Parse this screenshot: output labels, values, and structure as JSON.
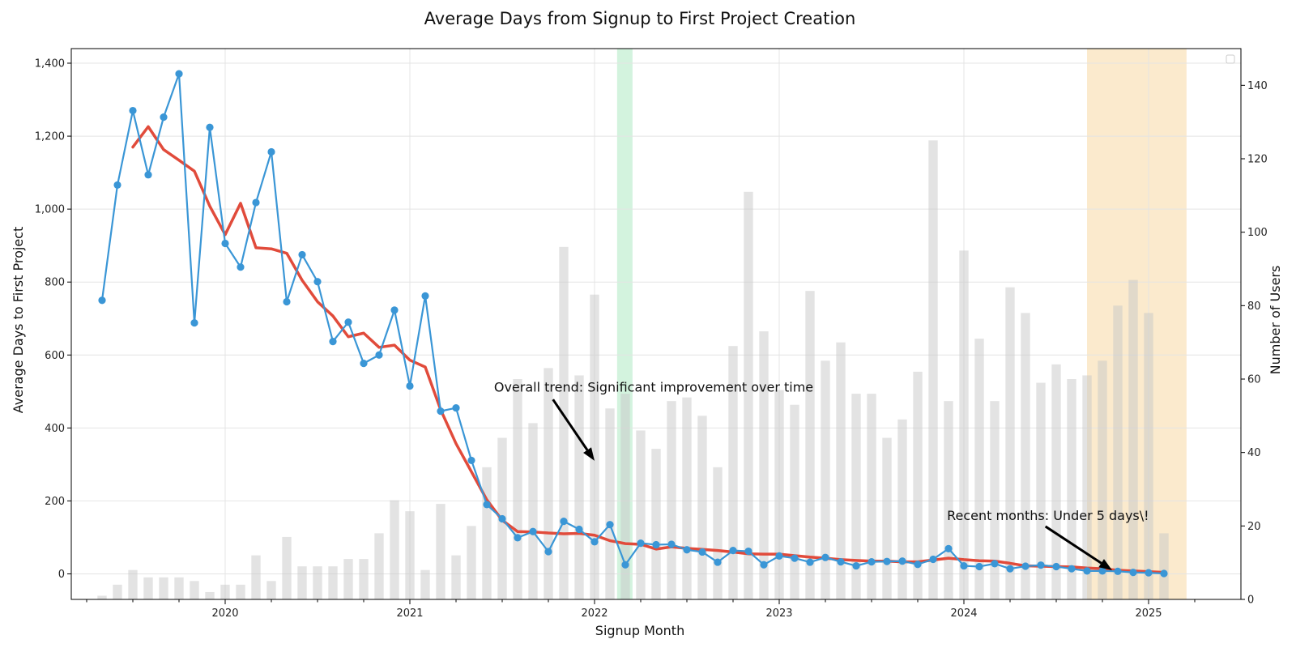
{
  "chart_data": {
    "type": "line",
    "title": "Average Days from Signup to First Project Creation",
    "xlabel": "Signup Month",
    "ylabel": "Average Days to First Project",
    "y2label": "Number of Users",
    "ylim": [
      -70,
      1440
    ],
    "y2lim": [
      0,
      150
    ],
    "xlim": [
      "2019-03",
      "2025-07"
    ],
    "y_ticks": [
      0,
      200,
      400,
      600,
      800,
      1000,
      1200,
      1400
    ],
    "y_tick_labels": [
      "0",
      "200",
      "400",
      "600",
      "800",
      "1,000",
      "1,200",
      "1,400"
    ],
    "y2_ticks": [
      0,
      20,
      40,
      60,
      80,
      100,
      120,
      140
    ],
    "y2_tick_labels": [
      "0",
      "20",
      "40",
      "60",
      "80",
      "100",
      "120",
      "140"
    ],
    "x_ticks": [
      "2020-01",
      "2021-01",
      "2022-01",
      "2023-01",
      "2024-01",
      "2025-01"
    ],
    "x_tick_labels": [
      "2020",
      "2021",
      "2022",
      "2023",
      "2024",
      "2025"
    ],
    "grid": true,
    "months": [
      "2019-05",
      "2019-06",
      "2019-07",
      "2019-08",
      "2019-09",
      "2019-10",
      "2019-11",
      "2019-12",
      "2020-01",
      "2020-02",
      "2020-03",
      "2020-04",
      "2020-05",
      "2020-06",
      "2020-07",
      "2020-08",
      "2020-09",
      "2020-10",
      "2020-11",
      "2020-12",
      "2021-01",
      "2021-02",
      "2021-03",
      "2021-04",
      "2021-05",
      "2021-06",
      "2021-07",
      "2021-08",
      "2021-09",
      "2021-10",
      "2021-11",
      "2021-12",
      "2022-01",
      "2022-02",
      "2022-03",
      "2022-04",
      "2022-05",
      "2022-06",
      "2022-07",
      "2022-08",
      "2022-09",
      "2022-10",
      "2022-11",
      "2022-12",
      "2023-01",
      "2023-02",
      "2023-03",
      "2023-04",
      "2023-05",
      "2023-06",
      "2023-07",
      "2023-08",
      "2023-09",
      "2023-10",
      "2023-11",
      "2023-12",
      "2024-01",
      "2024-02",
      "2024-03",
      "2024-04",
      "2024-05",
      "2024-06",
      "2024-07",
      "2024-08",
      "2024-09",
      "2024-10",
      "2024-11",
      "2024-12",
      "2025-01",
      "2025-02"
    ],
    "series": [
      {
        "name": "",
        "kind": "line-markers",
        "axis": "left",
        "color": "#3a96d6",
        "values": [
          750,
          1066,
          1270,
          1094,
          1252,
          1371,
          688,
          1224,
          906,
          841,
          1018,
          1157,
          746,
          875,
          801,
          637,
          690,
          577,
          600,
          723,
          515,
          762,
          446,
          455,
          311,
          190,
          151,
          99,
          116,
          61,
          144,
          122,
          88,
          135,
          25,
          84,
          80,
          81,
          66,
          60,
          32,
          64,
          62,
          25,
          49,
          43,
          32,
          45,
          33,
          22,
          33,
          34,
          35,
          26,
          40,
          69,
          22,
          20,
          28,
          14,
          21,
          24,
          20,
          14,
          8,
          8,
          7,
          4,
          3,
          1
        ]
      },
      {
        "name": "",
        "kind": "trend-line",
        "axis": "left",
        "color": "#e14b3b",
        "start_month": "2019-07",
        "values": [
          1170,
          1226,
          1163,
          1134,
          1104,
          1008,
          930,
          1016,
          894,
          891,
          879,
          805,
          746,
          707,
          650,
          660,
          621,
          627,
          586,
          567,
          450,
          357,
          280,
          203,
          147,
          116,
          115,
          112,
          110,
          111,
          106,
          91,
          83,
          81,
          68,
          74,
          70,
          67,
          64,
          60,
          55,
          54,
          54,
          50,
          46,
          43,
          39,
          37,
          35,
          35,
          33,
          33,
          38,
          43,
          39,
          36,
          35,
          29,
          22,
          21,
          20,
          19,
          16,
          14,
          10,
          8,
          6,
          4
        ]
      },
      {
        "name": "",
        "kind": "bar",
        "axis": "right",
        "color": "#c8c8c8",
        "values": [
          1,
          4,
          8,
          6,
          6,
          6,
          5,
          2,
          4,
          4,
          12,
          5,
          17,
          9,
          9,
          9,
          11,
          11,
          18,
          27,
          24,
          8,
          26,
          12,
          20,
          36,
          44,
          60,
          48,
          63,
          96,
          61,
          83,
          52,
          56,
          46,
          41,
          54,
          55,
          50,
          36,
          69,
          111,
          73,
          57,
          53,
          84,
          65,
          70,
          56,
          56,
          44,
          49,
          62,
          125,
          54,
          95,
          71,
          54,
          85,
          78,
          59,
          64,
          60,
          61,
          65,
          80,
          87,
          78,
          18
        ]
      }
    ],
    "shaded_spans": [
      {
        "start": "2022-02-15",
        "end": "2022-03-15",
        "color": "#aee9c3"
      },
      {
        "start": "2024-08-31",
        "end": "2025-03-15",
        "color": "#f7d9a4"
      }
    ],
    "annotations": [
      {
        "text": "Overall trend: Significant improvement over time",
        "text_at": [
          "2021-06-15",
          500
        ],
        "arrow_to": [
          "2022-01-01",
          310
        ]
      },
      {
        "text": "Recent months: Under 5 days\\!",
        "text_at": [
          "2023-11-28",
          148
        ],
        "arrow_to": [
          "2024-10-20",
          10
        ]
      }
    ],
    "legend": "top-right"
  }
}
